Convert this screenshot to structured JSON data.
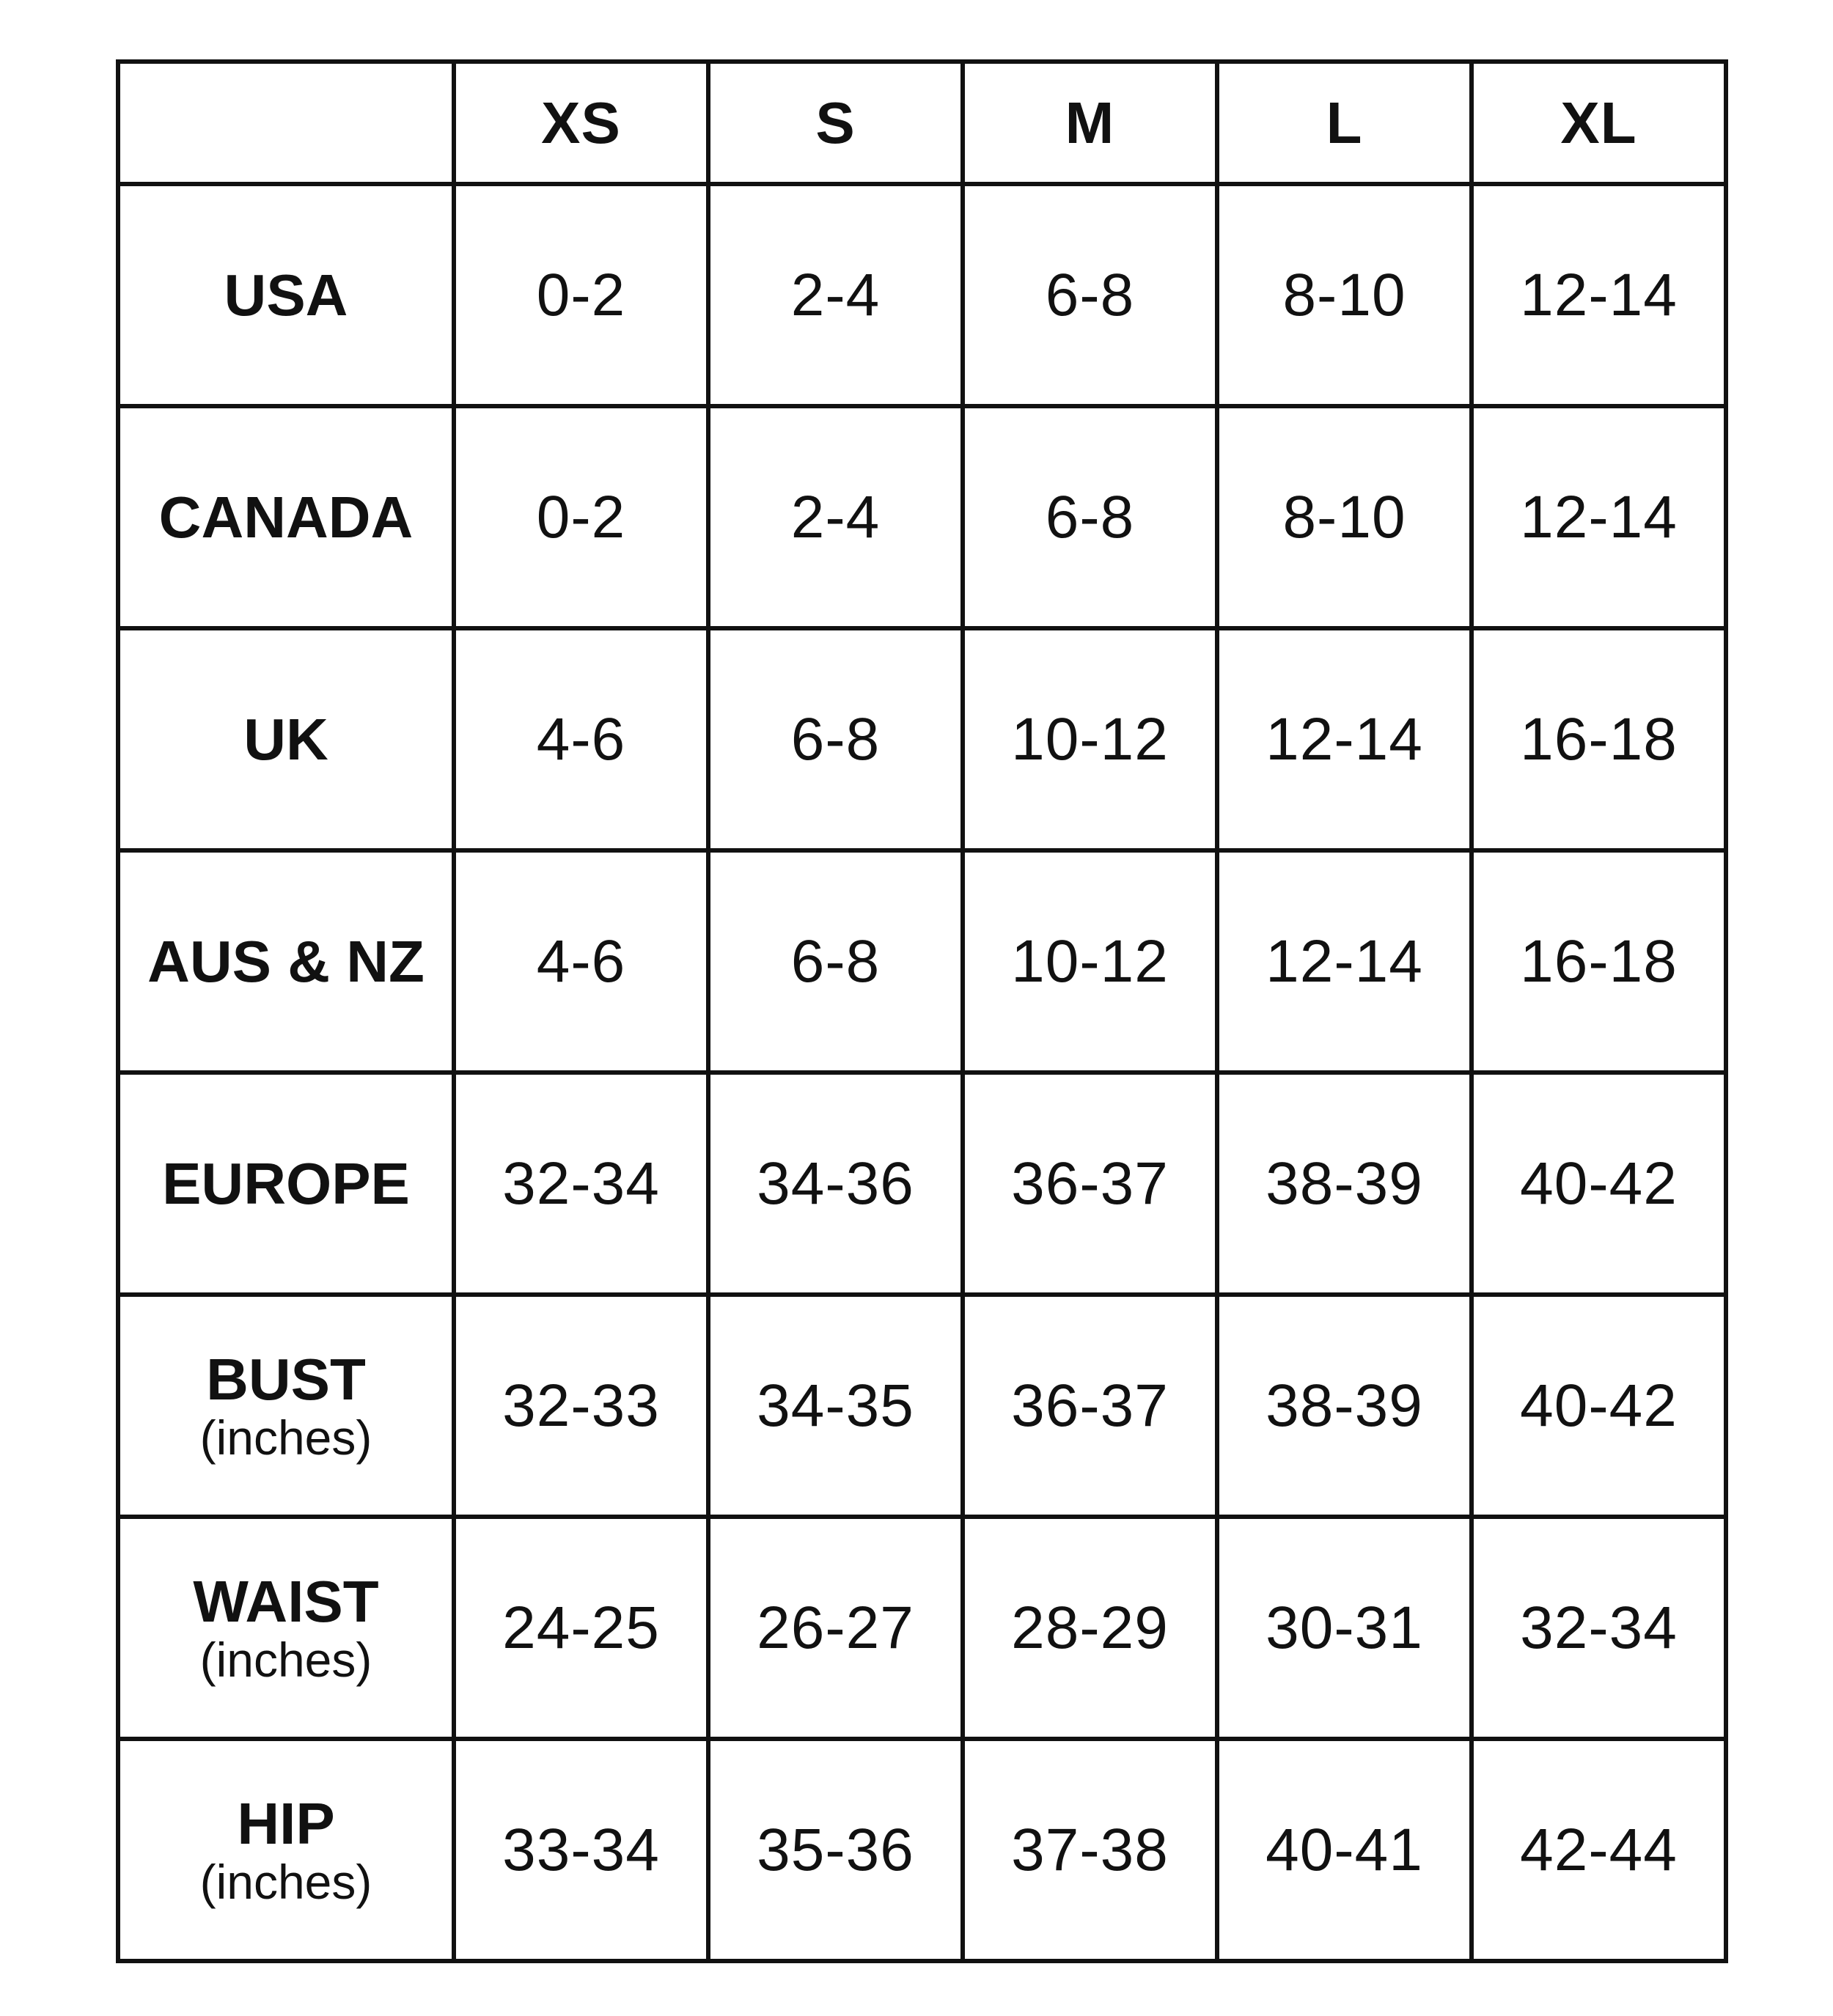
{
  "table": {
    "sizes": [
      "XS",
      "S",
      "M",
      "L",
      "XL"
    ],
    "rows": [
      {
        "label": "USA",
        "sublabel": "",
        "values": [
          "0-2",
          "2-4",
          "6-8",
          "8-10",
          "12-14"
        ]
      },
      {
        "label": "CANADA",
        "sublabel": "",
        "values": [
          "0-2",
          "2-4",
          "6-8",
          "8-10",
          "12-14"
        ]
      },
      {
        "label": "UK",
        "sublabel": "",
        "values": [
          "4-6",
          "6-8",
          "10-12",
          "12-14",
          "16-18"
        ]
      },
      {
        "label": "AUS & NZ",
        "sublabel": "",
        "values": [
          "4-6",
          "6-8",
          "10-12",
          "12-14",
          "16-18"
        ]
      },
      {
        "label": "EUROPE",
        "sublabel": "",
        "values": [
          "32-34",
          "34-36",
          "36-37",
          "38-39",
          "40-42"
        ]
      },
      {
        "label": "BUST",
        "sublabel": "(inches)",
        "values": [
          "32-33",
          "34-35",
          "36-37",
          "38-39",
          "40-42"
        ]
      },
      {
        "label": "WAIST",
        "sublabel": "(inches)",
        "values": [
          "24-25",
          "26-27",
          "28-29",
          "30-31",
          "32-34"
        ]
      },
      {
        "label": "HIP",
        "sublabel": "(inches)",
        "values": [
          "33-34",
          "35-36",
          "37-38",
          "40-41",
          "42-44"
        ]
      }
    ]
  }
}
